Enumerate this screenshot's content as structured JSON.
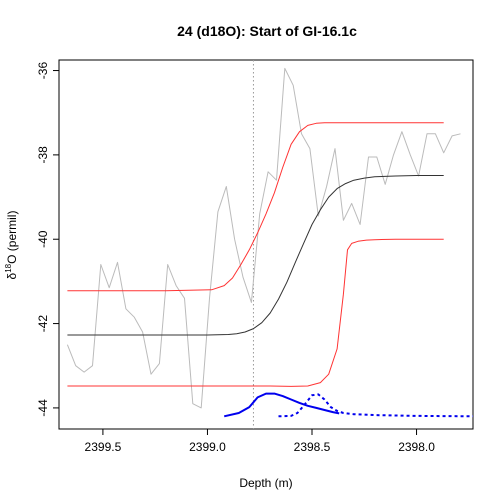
{
  "chart_data": {
    "type": "line",
    "title": "24 (d18O): Start of GI-16.1c",
    "xlabel": "Depth (m)",
    "ylabel_main": "δ",
    "ylabel_sup": "18",
    "ylabel_rest": "O (permil)",
    "x_reversed": true,
    "xlim": [
      2399.71,
      2397.73
    ],
    "ylim": [
      -44.5,
      -35.75
    ],
    "x_ticks": [
      2399.5,
      2399.0,
      2398.5,
      2398.0
    ],
    "x_tick_labels": [
      "2399.5",
      "2399.0",
      "2398.5",
      "2398.0"
    ],
    "y_ticks": [
      -44,
      -42,
      -40,
      -38,
      -36
    ],
    "y_tick_labels": [
      "-44",
      "-42",
      "-40",
      "-38",
      "-36"
    ],
    "vline": {
      "x": 2398.78,
      "color": "#999999",
      "style": "dotted"
    },
    "series": [
      {
        "id": "data",
        "color": "#bbbbbb",
        "x": [
          2399.67,
          2399.63,
          2399.59,
          2399.55,
          2399.51,
          2399.47,
          2399.43,
          2399.39,
          2399.35,
          2399.31,
          2399.27,
          2399.23,
          2399.19,
          2399.15,
          2399.11,
          2399.07,
          2399.03,
          2398.99,
          2398.95,
          2398.91,
          2398.87,
          2398.83,
          2398.79,
          2398.75,
          2398.71,
          2398.67,
          2398.63,
          2398.59,
          2398.55,
          2398.51,
          2398.47,
          2398.43,
          2398.39,
          2398.35,
          2398.31,
          2398.27,
          2398.23,
          2398.19,
          2398.15,
          2398.11,
          2398.07,
          2398.03,
          2397.99,
          2397.95,
          2397.91,
          2397.87,
          2397.83,
          2397.79
        ],
        "y": [
          -42.5,
          -43.0,
          -43.15,
          -43.0,
          -40.6,
          -41.15,
          -40.55,
          -41.65,
          -41.85,
          -42.2,
          -43.2,
          -42.95,
          -40.6,
          -41.1,
          -41.4,
          -43.9,
          -44.0,
          -41.4,
          -39.35,
          -38.75,
          -40.0,
          -40.9,
          -41.5,
          -39.4,
          -38.4,
          -38.6,
          -35.95,
          -36.35,
          -37.5,
          -37.85,
          -39.45,
          -38.75,
          -37.85,
          -39.55,
          -39.15,
          -39.65,
          -38.05,
          -38.05,
          -38.7,
          -38.0,
          -37.45,
          -38.0,
          -38.5,
          -37.5,
          -37.5,
          -37.95,
          -37.55,
          -37.5
        ]
      },
      {
        "id": "fit-median",
        "color": "#333333",
        "x": [
          2399.67,
          2399.3,
          2399.0,
          2398.9,
          2398.86,
          2398.82,
          2398.78,
          2398.74,
          2398.7,
          2398.66,
          2398.62,
          2398.58,
          2398.54,
          2398.5,
          2398.46,
          2398.42,
          2398.38,
          2398.34,
          2398.3,
          2398.25,
          2398.2,
          2398.1,
          2398.0,
          2397.87
        ],
        "y": [
          -42.27,
          -42.27,
          -42.27,
          -42.26,
          -42.24,
          -42.2,
          -42.12,
          -41.98,
          -41.75,
          -41.42,
          -41.02,
          -40.55,
          -40.1,
          -39.65,
          -39.3,
          -39.0,
          -38.8,
          -38.68,
          -38.6,
          -38.55,
          -38.52,
          -38.5,
          -38.49,
          -38.49
        ]
      },
      {
        "id": "fit-upper",
        "color": "#ff3333",
        "x": [
          2399.67,
          2399.2,
          2398.98,
          2398.92,
          2398.88,
          2398.84,
          2398.8,
          2398.76,
          2398.72,
          2398.68,
          2398.64,
          2398.6,
          2398.56,
          2398.52,
          2398.48,
          2398.44,
          2398.4,
          2398.3,
          2398.2,
          2398.0,
          2397.87
        ],
        "y": [
          -41.22,
          -41.22,
          -41.2,
          -41.1,
          -40.92,
          -40.6,
          -40.25,
          -39.85,
          -39.4,
          -38.9,
          -38.3,
          -37.75,
          -37.45,
          -37.3,
          -37.25,
          -37.24,
          -37.24,
          -37.24,
          -37.24,
          -37.24,
          -37.24
        ]
      },
      {
        "id": "fit-lower",
        "color": "#ff3333",
        "x": [
          2399.67,
          2399.2,
          2398.9,
          2398.7,
          2398.6,
          2398.52,
          2398.46,
          2398.42,
          2398.38,
          2398.35,
          2398.33,
          2398.31,
          2398.28,
          2398.24,
          2398.2,
          2398.1,
          2398.0,
          2397.87
        ],
        "y": [
          -43.48,
          -43.48,
          -43.48,
          -43.48,
          -43.49,
          -43.48,
          -43.4,
          -43.2,
          -42.6,
          -41.3,
          -40.25,
          -40.1,
          -40.05,
          -40.02,
          -40.01,
          -40.0,
          -40.0,
          -40.0
        ]
      },
      {
        "id": "density-solid",
        "color": "#0000ee",
        "style": "solid",
        "x": [
          2398.92,
          2398.85,
          2398.8,
          2398.76,
          2398.72,
          2398.68,
          2398.64,
          2398.6,
          2398.56,
          2398.52,
          2398.48,
          2398.44,
          2398.4,
          2398.37
        ],
        "y": [
          -44.2,
          -44.12,
          -43.98,
          -43.75,
          -43.66,
          -43.66,
          -43.72,
          -43.8,
          -43.88,
          -43.95,
          -44.0,
          -44.05,
          -44.1,
          -44.13
        ]
      },
      {
        "id": "density-dotted",
        "color": "#0000ee",
        "style": "dotted",
        "x": [
          2398.66,
          2398.6,
          2398.57,
          2398.54,
          2398.5,
          2398.47,
          2398.44,
          2398.41,
          2398.38,
          2398.35,
          2398.3,
          2398.2,
          2398.0,
          2397.73
        ],
        "y": [
          -44.2,
          -44.19,
          -44.12,
          -43.95,
          -43.7,
          -43.68,
          -43.8,
          -43.98,
          -44.07,
          -44.12,
          -44.15,
          -44.17,
          -44.19,
          -44.2
        ]
      }
    ]
  }
}
